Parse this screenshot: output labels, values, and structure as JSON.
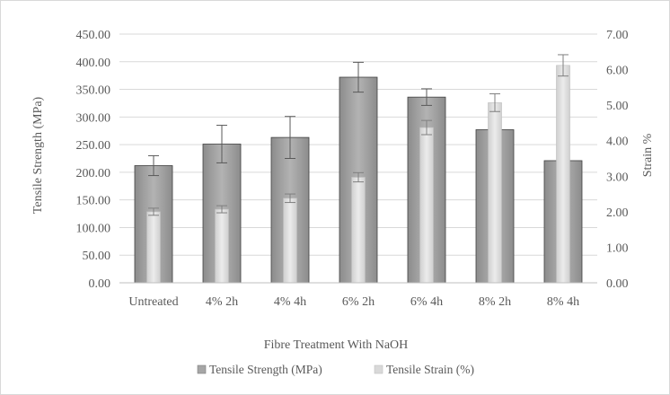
{
  "chart_data": {
    "type": "bar",
    "title": "",
    "xlabel": "Fibre Treatment With NaOH",
    "ylabel_left": "Tensile Strength (MPa)",
    "ylabel_right": "Strain %",
    "categories": [
      "Untreated",
      "4% 2h",
      "4% 4h",
      "6% 2h",
      "6% 4h",
      "8% 2h",
      "8% 4h"
    ],
    "y_left": {
      "min": 0,
      "max": 450,
      "step": 50,
      "decimals": 2
    },
    "y_right": {
      "min": 0,
      "max": 7,
      "step": 1,
      "decimals": 2
    },
    "series": [
      {
        "name": "Tensile Strength (MPa)",
        "axis": "left",
        "color": "#a6a6a6",
        "values": [
          212,
          251,
          263,
          372,
          336,
          277,
          221
        ],
        "error": [
          18,
          34,
          38,
          27,
          15,
          0,
          0
        ]
      },
      {
        "name": "Tensile Strain (%)",
        "axis": "right",
        "color": "#d9d9d9",
        "values": [
          2.0,
          2.07,
          2.38,
          2.97,
          4.37,
          5.07,
          6.12
        ],
        "error": [
          0.1,
          0.1,
          0.12,
          0.13,
          0.2,
          0.25,
          0.3
        ]
      }
    ],
    "grid": true,
    "legend_position": "bottom"
  }
}
